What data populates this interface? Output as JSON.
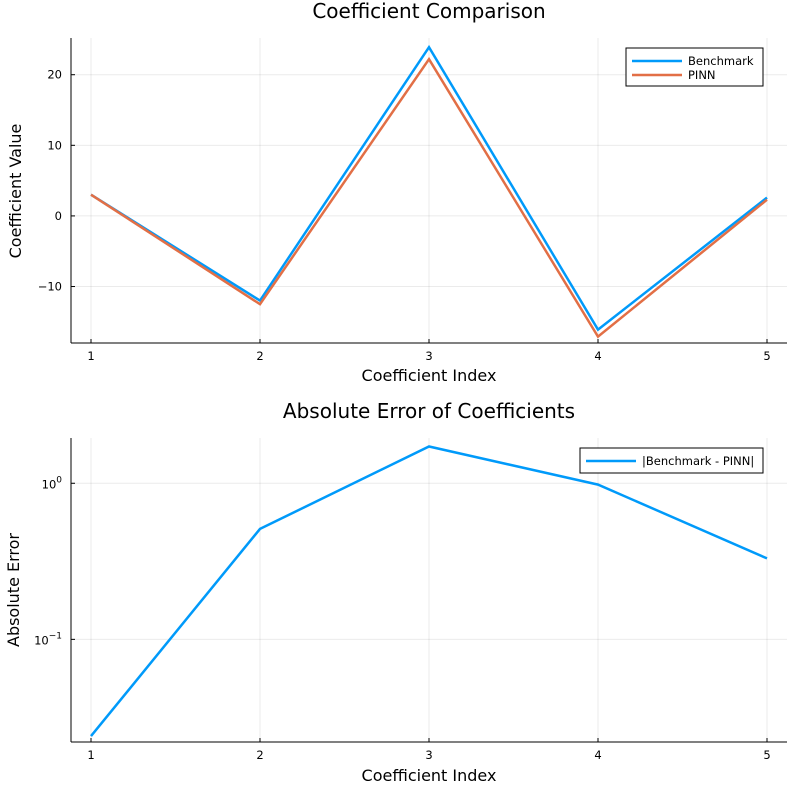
{
  "chart_data": [
    {
      "type": "line",
      "title": "Coefficient Comparison",
      "xlabel": "Coefficient Index",
      "ylabel": "Coefficient Value",
      "x": [
        1,
        2,
        3,
        4,
        5
      ],
      "xticks": [
        "1",
        "2",
        "3",
        "4",
        "5"
      ],
      "yticks": [
        -10,
        0,
        10,
        20
      ],
      "ytick_labels": [
        "−10",
        "0",
        "10",
        "20"
      ],
      "ylim": [
        -18,
        25.2
      ],
      "yscale": "linear",
      "grid": true,
      "legend_position": "top-right",
      "series": [
        {
          "name": "Benchmark",
          "color": "#009AFA",
          "values": [
            3.0,
            -12.0,
            23.9,
            -16.1,
            2.6
          ]
        },
        {
          "name": "PINN",
          "color": "#E26F46",
          "values": [
            3.0,
            -12.5,
            22.2,
            -17.1,
            2.3
          ]
        }
      ]
    },
    {
      "type": "line",
      "title": "Absolute Error of Coefficients",
      "xlabel": "Coefficient Index",
      "ylabel": "Absolute Error",
      "x": [
        1,
        2,
        3,
        4,
        5
      ],
      "xticks": [
        "1",
        "2",
        "3",
        "4",
        "5"
      ],
      "yticks": [
        0.1,
        1
      ],
      "ytick_labels": [
        {
          "base": "10",
          "exp": "−1"
        },
        {
          "base": "10",
          "exp": "0"
        }
      ],
      "ylim": [
        0.022,
        1.95
      ],
      "yscale": "log",
      "grid": true,
      "legend_position": "top-right",
      "series": [
        {
          "name": "|Benchmark - PINN|",
          "color": "#009AFA",
          "values": [
            0.024,
            0.51,
            1.72,
            0.98,
            0.33
          ]
        }
      ]
    }
  ]
}
